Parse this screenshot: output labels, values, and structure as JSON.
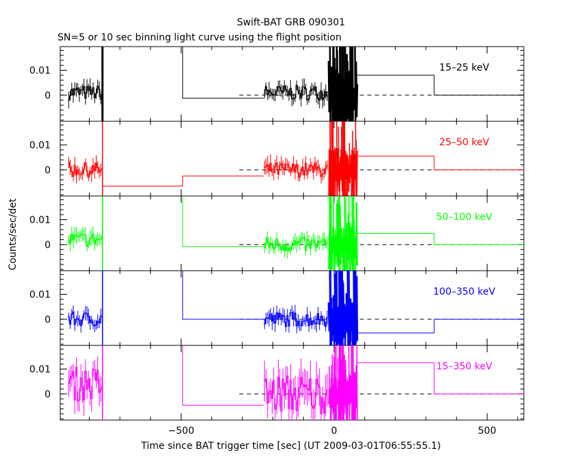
{
  "chart_data": {
    "type": "line",
    "title": "Swift-BAT GRB 090301",
    "subtitle": "SN=5 or 10 sec binning light curve using the flight position",
    "xlabel": "Time since BAT trigger time [sec] (UT 2009-03-01T06:55:55.1)",
    "ylabel": "Counts/sec/det",
    "xlim": [
      -895,
      620
    ],
    "x_ticks": [
      -500,
      0,
      500
    ],
    "x_tick_labels": [
      "−500",
      "0",
      "500"
    ],
    "ylim": [
      -0.0105,
      0.0195
    ],
    "y_ticks": [
      0,
      0.01
    ],
    "y_tick_labels": [
      "0",
      "0.01"
    ],
    "grid": false,
    "panels": [
      {
        "band": "15–25 keV",
        "color": "#000000",
        "pre_mean": 0.001,
        "steps": [
          [
            -757,
            0.03
          ],
          [
            -495,
            -0.0012
          ],
          [
            -230,
            -0.0012
          ]
        ],
        "active_mean": 0.001,
        "burst": [
          [
            -18,
            0.025
          ],
          [
            75,
            0.0075
          ]
        ],
        "post_steps": [
          [
            75,
            0.008
          ],
          [
            327,
            0.0
          ],
          [
            620,
            0.0
          ]
        ]
      },
      {
        "band": "25–50 keV",
        "color": "#ff0000",
        "pre_mean": 0.0,
        "steps": [
          [
            -757,
            -0.0065
          ],
          [
            -495,
            -0.0025
          ],
          [
            -230,
            -0.0025
          ]
        ],
        "active_mean": 0.0,
        "burst": [
          [
            -18,
            0.02
          ],
          [
            75,
            0.0055
          ]
        ],
        "post_steps": [
          [
            75,
            0.0055
          ],
          [
            327,
            0.0
          ],
          [
            620,
            0.0
          ]
        ]
      },
      {
        "band": "50–100 keV",
        "color": "#00ff00",
        "pre_mean": 0.002,
        "steps": [
          [
            -757,
            0.02
          ],
          [
            -495,
            -0.0008
          ],
          [
            -230,
            -0.0008
          ]
        ],
        "active_mean": 0.0,
        "burst": [
          [
            -18,
            0.02
          ],
          [
            75,
            0.005
          ]
        ],
        "post_steps": [
          [
            75,
            0.0045
          ],
          [
            327,
            0.0
          ],
          [
            620,
            0.0
          ]
        ]
      },
      {
        "band": "100–350 keV",
        "color": "#0000ff",
        "pre_mean": 0.0,
        "steps": [
          [
            -757,
            0.02
          ],
          [
            -495,
            0.0
          ],
          [
            -230,
            0.0
          ]
        ],
        "active_mean": 0.0,
        "burst": [
          [
            -18,
            0.02
          ],
          [
            75,
            -0.0055
          ]
        ],
        "post_steps": [
          [
            75,
            -0.0055
          ],
          [
            327,
            0.0
          ],
          [
            620,
            0.0
          ]
        ]
      },
      {
        "band": "15–350 keV",
        "color": "#ff00ff",
        "pre_mean": 0.004,
        "steps": [
          [
            -757,
            0.025
          ],
          [
            -495,
            -0.0045
          ],
          [
            -230,
            -0.0045
          ]
        ],
        "active_mean": 0.0,
        "burst": [
          [
            -18,
            0.02
          ],
          [
            75,
            0.013
          ]
        ],
        "post_steps": [
          [
            75,
            0.0125
          ],
          [
            327,
            0.0
          ],
          [
            620,
            0.0
          ]
        ]
      }
    ]
  }
}
